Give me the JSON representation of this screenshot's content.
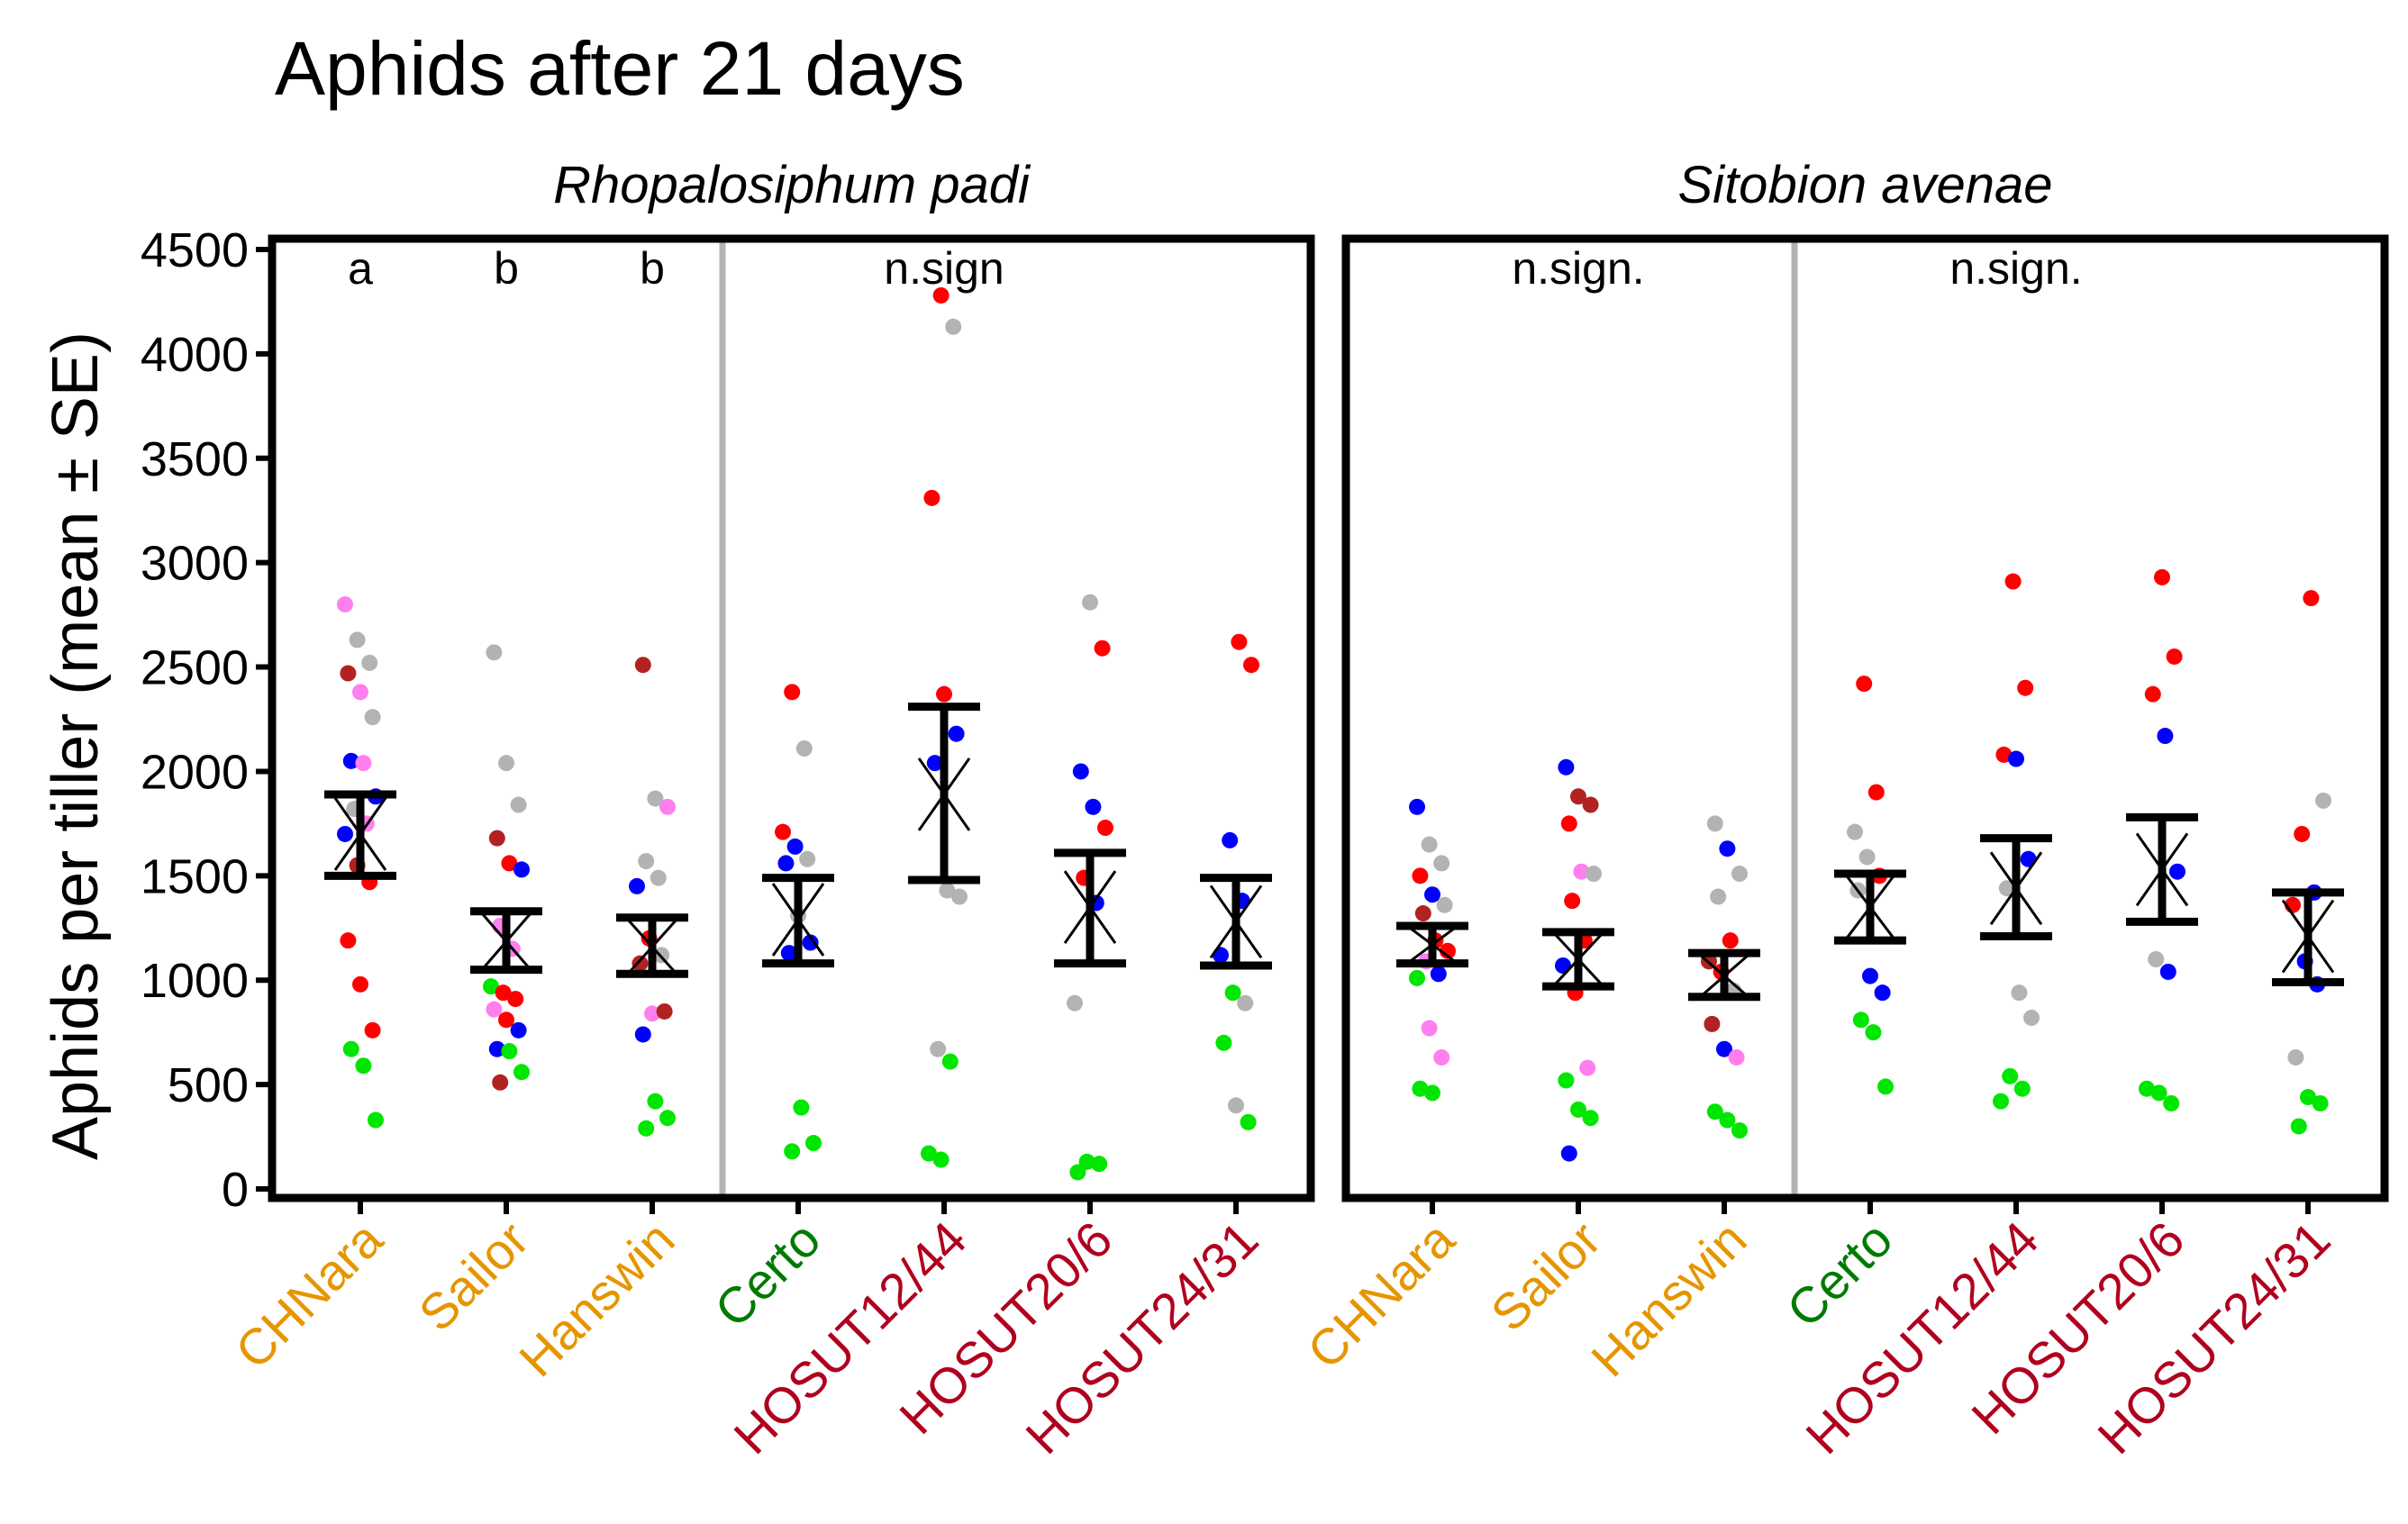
{
  "chart_data": {
    "type": "scatter",
    "title": "Aphids after 21 days",
    "ylabel": "Aphids per tiller (mean ± SE)",
    "xlabel": "",
    "ylim": [
      0,
      4500
    ],
    "yticks": [
      0,
      500,
      1000,
      1500,
      2000,
      2500,
      3000,
      3500,
      4000,
      4500
    ],
    "categories": [
      "CHNara",
      "Sailor",
      "Hanswin",
      "Certo",
      "HOSUT12/44",
      "HOSUT20/6",
      "HOSUT24/31"
    ],
    "category_colors": [
      "#E69500",
      "#E69500",
      "#E69500",
      "#007A00",
      "#B0001E",
      "#B0001E",
      "#B0001E"
    ],
    "point_color_names": {
      "pink": "#FF7FEF",
      "grey": "#B3B3B3",
      "darkred": "#B22222",
      "blue": "#0000FF",
      "red": "#FF0000",
      "green": "#00E600"
    },
    "legend": "none",
    "grid": false,
    "panels": [
      {
        "name": "Rhopalosiphum padi",
        "annotations": [
          {
            "group": "CHNara",
            "text": "a"
          },
          {
            "group": "Sailor",
            "text": "b"
          },
          {
            "group": "Hanswin",
            "text": "b"
          },
          {
            "group": "HOSUT12/44",
            "text": "n.sign"
          }
        ],
        "summary": [
          {
            "mean": 1700,
            "lower": 1500,
            "upper": 1890
          },
          {
            "mean": 1185,
            "lower": 1050,
            "upper": 1330
          },
          {
            "mean": 1160,
            "lower": 1030,
            "upper": 1300
          },
          {
            "mean": 1290,
            "lower": 1080,
            "upper": 1490
          },
          {
            "mean": 1890,
            "lower": 1480,
            "upper": 2310
          },
          {
            "mean": 1350,
            "lower": 1080,
            "upper": 1610
          },
          {
            "mean": 1280,
            "lower": 1070,
            "upper": 1490
          }
        ],
        "points": [
          [
            {
              "y": 2800,
              "c": "pink"
            },
            {
              "y": 2630,
              "c": "grey"
            },
            {
              "y": 2520,
              "c": "grey"
            },
            {
              "y": 2470,
              "c": "darkred"
            },
            {
              "y": 2380,
              "c": "pink"
            },
            {
              "y": 2260,
              "c": "grey"
            },
            {
              "y": 2050,
              "c": "blue"
            },
            {
              "y": 2040,
              "c": "pink"
            },
            {
              "y": 1880,
              "c": "blue"
            },
            {
              "y": 1820,
              "c": "grey"
            },
            {
              "y": 1750,
              "c": "pink"
            },
            {
              "y": 1700,
              "c": "blue"
            },
            {
              "y": 1550,
              "c": "darkred"
            },
            {
              "y": 1470,
              "c": "red"
            },
            {
              "y": 1190,
              "c": "red"
            },
            {
              "y": 980,
              "c": "red"
            },
            {
              "y": 760,
              "c": "red"
            },
            {
              "y": 670,
              "c": "green"
            },
            {
              "y": 590,
              "c": "green"
            },
            {
              "y": 330,
              "c": "green"
            }
          ],
          [
            {
              "y": 2570,
              "c": "grey"
            },
            {
              "y": 2040,
              "c": "grey"
            },
            {
              "y": 1840,
              "c": "grey"
            },
            {
              "y": 1680,
              "c": "darkred"
            },
            {
              "y": 1560,
              "c": "red"
            },
            {
              "y": 1530,
              "c": "blue"
            },
            {
              "y": 1260,
              "c": "pink"
            },
            {
              "y": 1150,
              "c": "pink"
            },
            {
              "y": 970,
              "c": "green"
            },
            {
              "y": 940,
              "c": "red"
            },
            {
              "y": 910,
              "c": "red"
            },
            {
              "y": 860,
              "c": "pink"
            },
            {
              "y": 810,
              "c": "red"
            },
            {
              "y": 760,
              "c": "blue"
            },
            {
              "y": 670,
              "c": "blue"
            },
            {
              "y": 660,
              "c": "green"
            },
            {
              "y": 560,
              "c": "green"
            },
            {
              "y": 510,
              "c": "darkred"
            }
          ],
          [
            {
              "y": 2510,
              "c": "darkred"
            },
            {
              "y": 1870,
              "c": "grey"
            },
            {
              "y": 1830,
              "c": "pink"
            },
            {
              "y": 1570,
              "c": "grey"
            },
            {
              "y": 1490,
              "c": "grey"
            },
            {
              "y": 1450,
              "c": "blue"
            },
            {
              "y": 1200,
              "c": "red"
            },
            {
              "y": 1120,
              "c": "grey"
            },
            {
              "y": 1080,
              "c": "darkred"
            },
            {
              "y": 840,
              "c": "pink"
            },
            {
              "y": 850,
              "c": "darkred"
            },
            {
              "y": 740,
              "c": "blue"
            },
            {
              "y": 420,
              "c": "green"
            },
            {
              "y": 340,
              "c": "green"
            },
            {
              "y": 290,
              "c": "green"
            }
          ],
          [
            {
              "y": 2380,
              "c": "red"
            },
            {
              "y": 2110,
              "c": "grey"
            },
            {
              "y": 1710,
              "c": "red"
            },
            {
              "y": 1640,
              "c": "blue"
            },
            {
              "y": 1580,
              "c": "grey"
            },
            {
              "y": 1560,
              "c": "blue"
            },
            {
              "y": 1310,
              "c": "grey"
            },
            {
              "y": 1180,
              "c": "blue"
            },
            {
              "y": 1130,
              "c": "blue"
            },
            {
              "y": 390,
              "c": "green"
            },
            {
              "y": 220,
              "c": "green"
            },
            {
              "y": 180,
              "c": "green"
            }
          ],
          [
            {
              "y": 4280,
              "c": "red"
            },
            {
              "y": 4130,
              "c": "grey"
            },
            {
              "y": 3310,
              "c": "red"
            },
            {
              "y": 2370,
              "c": "red"
            },
            {
              "y": 2180,
              "c": "blue"
            },
            {
              "y": 2040,
              "c": "blue"
            },
            {
              "y": 1430,
              "c": "grey"
            },
            {
              "y": 1400,
              "c": "grey"
            },
            {
              "y": 670,
              "c": "grey"
            },
            {
              "y": 610,
              "c": "green"
            },
            {
              "y": 170,
              "c": "green"
            },
            {
              "y": 140,
              "c": "green"
            }
          ],
          [
            {
              "y": 2810,
              "c": "grey"
            },
            {
              "y": 2590,
              "c": "red"
            },
            {
              "y": 2000,
              "c": "blue"
            },
            {
              "y": 1830,
              "c": "blue"
            },
            {
              "y": 1730,
              "c": "red"
            },
            {
              "y": 1490,
              "c": "red"
            },
            {
              "y": 1370,
              "c": "blue"
            },
            {
              "y": 890,
              "c": "grey"
            },
            {
              "y": 130,
              "c": "green"
            },
            {
              "y": 120,
              "c": "green"
            },
            {
              "y": 80,
              "c": "green"
            }
          ],
          [
            {
              "y": 2620,
              "c": "red"
            },
            {
              "y": 2510,
              "c": "red"
            },
            {
              "y": 1670,
              "c": "blue"
            },
            {
              "y": 1380,
              "c": "blue"
            },
            {
              "y": 1120,
              "c": "blue"
            },
            {
              "y": 940,
              "c": "green"
            },
            {
              "y": 890,
              "c": "grey"
            },
            {
              "y": 700,
              "c": "green"
            },
            {
              "y": 400,
              "c": "grey"
            },
            {
              "y": 320,
              "c": "green"
            }
          ]
        ]
      },
      {
        "name": "Sitobion avenae",
        "annotations": [
          {
            "group": "Sailor",
            "text": "n.sign."
          },
          {
            "group": "HOSUT12/44",
            "text": "n.sign."
          }
        ],
        "summary": [
          {
            "mean": 1170,
            "lower": 1080,
            "upper": 1260
          },
          {
            "mean": 1100,
            "lower": 970,
            "upper": 1230
          },
          {
            "mean": 1020,
            "lower": 920,
            "upper": 1130
          },
          {
            "mean": 1350,
            "lower": 1190,
            "upper": 1510
          },
          {
            "mean": 1440,
            "lower": 1210,
            "upper": 1680
          },
          {
            "mean": 1530,
            "lower": 1280,
            "upper": 1780
          },
          {
            "mean": 1210,
            "lower": 990,
            "upper": 1420
          }
        ],
        "points": [
          [
            {
              "y": 1830,
              "c": "blue"
            },
            {
              "y": 1650,
              "c": "grey"
            },
            {
              "y": 1560,
              "c": "grey"
            },
            {
              "y": 1500,
              "c": "red"
            },
            {
              "y": 1410,
              "c": "blue"
            },
            {
              "y": 1360,
              "c": "grey"
            },
            {
              "y": 1320,
              "c": "darkred"
            },
            {
              "y": 1190,
              "c": "red"
            },
            {
              "y": 1140,
              "c": "red"
            },
            {
              "y": 1090,
              "c": "pink"
            },
            {
              "y": 1030,
              "c": "blue"
            },
            {
              "y": 1010,
              "c": "green"
            },
            {
              "y": 770,
              "c": "pink"
            },
            {
              "y": 630,
              "c": "pink"
            },
            {
              "y": 480,
              "c": "green"
            },
            {
              "y": 460,
              "c": "green"
            }
          ],
          [
            {
              "y": 2020,
              "c": "blue"
            },
            {
              "y": 1880,
              "c": "darkred"
            },
            {
              "y": 1840,
              "c": "darkred"
            },
            {
              "y": 1750,
              "c": "red"
            },
            {
              "y": 1520,
              "c": "pink"
            },
            {
              "y": 1510,
              "c": "grey"
            },
            {
              "y": 1380,
              "c": "red"
            },
            {
              "y": 1190,
              "c": "red"
            },
            {
              "y": 1070,
              "c": "blue"
            },
            {
              "y": 940,
              "c": "red"
            },
            {
              "y": 580,
              "c": "pink"
            },
            {
              "y": 520,
              "c": "green"
            },
            {
              "y": 380,
              "c": "green"
            },
            {
              "y": 340,
              "c": "green"
            },
            {
              "y": 170,
              "c": "blue"
            }
          ],
          [
            {
              "y": 1750,
              "c": "grey"
            },
            {
              "y": 1630,
              "c": "blue"
            },
            {
              "y": 1510,
              "c": "grey"
            },
            {
              "y": 1400,
              "c": "grey"
            },
            {
              "y": 1190,
              "c": "red"
            },
            {
              "y": 1090,
              "c": "darkred"
            },
            {
              "y": 1040,
              "c": "red"
            },
            {
              "y": 950,
              "c": "grey"
            },
            {
              "y": 790,
              "c": "darkred"
            },
            {
              "y": 670,
              "c": "blue"
            },
            {
              "y": 630,
              "c": "pink"
            },
            {
              "y": 370,
              "c": "green"
            },
            {
              "y": 330,
              "c": "green"
            },
            {
              "y": 280,
              "c": "green"
            }
          ],
          [
            {
              "y": 2420,
              "c": "red"
            },
            {
              "y": 1900,
              "c": "red"
            },
            {
              "y": 1710,
              "c": "grey"
            },
            {
              "y": 1590,
              "c": "grey"
            },
            {
              "y": 1500,
              "c": "red"
            },
            {
              "y": 1430,
              "c": "grey"
            },
            {
              "y": 1020,
              "c": "blue"
            },
            {
              "y": 940,
              "c": "blue"
            },
            {
              "y": 810,
              "c": "green"
            },
            {
              "y": 750,
              "c": "green"
            },
            {
              "y": 490,
              "c": "green"
            }
          ],
          [
            {
              "y": 2910,
              "c": "red"
            },
            {
              "y": 2400,
              "c": "red"
            },
            {
              "y": 2080,
              "c": "red"
            },
            {
              "y": 2060,
              "c": "blue"
            },
            {
              "y": 1580,
              "c": "blue"
            },
            {
              "y": 1440,
              "c": "grey"
            },
            {
              "y": 940,
              "c": "grey"
            },
            {
              "y": 820,
              "c": "grey"
            },
            {
              "y": 540,
              "c": "green"
            },
            {
              "y": 480,
              "c": "green"
            },
            {
              "y": 420,
              "c": "green"
            }
          ],
          [
            {
              "y": 2930,
              "c": "red"
            },
            {
              "y": 2550,
              "c": "red"
            },
            {
              "y": 2370,
              "c": "red"
            },
            {
              "y": 2170,
              "c": "blue"
            },
            {
              "y": 1520,
              "c": "blue"
            },
            {
              "y": 1100,
              "c": "grey"
            },
            {
              "y": 1040,
              "c": "blue"
            },
            {
              "y": 480,
              "c": "green"
            },
            {
              "y": 460,
              "c": "green"
            },
            {
              "y": 410,
              "c": "green"
            }
          ],
          [
            {
              "y": 2830,
              "c": "red"
            },
            {
              "y": 1860,
              "c": "grey"
            },
            {
              "y": 1700,
              "c": "red"
            },
            {
              "y": 1420,
              "c": "blue"
            },
            {
              "y": 1360,
              "c": "red"
            },
            {
              "y": 1090,
              "c": "blue"
            },
            {
              "y": 980,
              "c": "blue"
            },
            {
              "y": 630,
              "c": "grey"
            },
            {
              "y": 440,
              "c": "green"
            },
            {
              "y": 410,
              "c": "green"
            },
            {
              "y": 300,
              "c": "green"
            }
          ]
        ]
      }
    ]
  }
}
